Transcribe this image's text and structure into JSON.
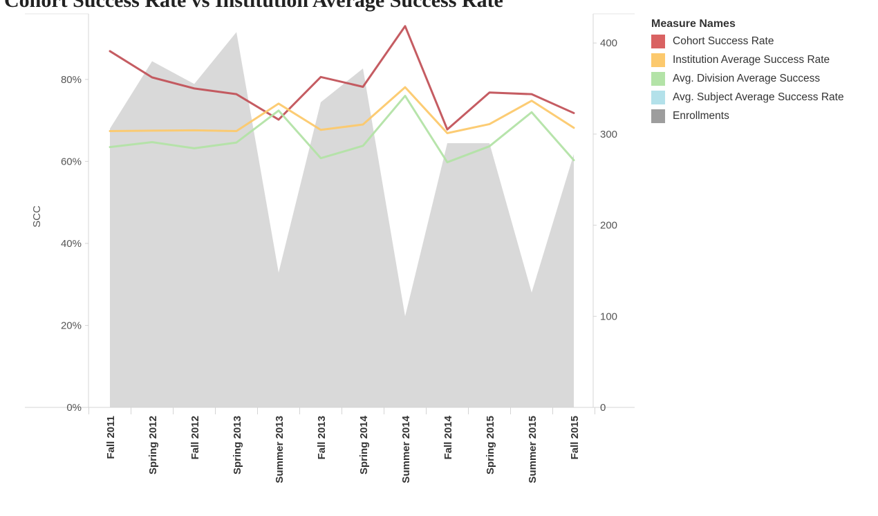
{
  "header": {
    "text": "Cohort Success Rate vs Institution Average Success Rate"
  },
  "legend": {
    "title": "Measure Names",
    "items": [
      {
        "label": "Cohort Success Rate",
        "color": "#d96262"
      },
      {
        "label": "Institution Average Success Rate",
        "color": "#fcc96d"
      },
      {
        "label": "Avg. Division Average Success",
        "color": "#b3e3a7"
      },
      {
        "label": "Avg. Subject Average Success Rate",
        "color": "#b3e1ea"
      },
      {
        "label": "Enrollments",
        "color": "#9d9d9d"
      }
    ]
  },
  "chart_data": {
    "type": "line",
    "categories": [
      "Fall 2011",
      "Spring 2012",
      "Fall 2012",
      "Spring 2013",
      "Summer 2013",
      "Fall 2013",
      "Spring 2014",
      "Summer 2014",
      "Fall 2014",
      "Spring 2015",
      "Summer 2015",
      "Fall 2015"
    ],
    "ylabel": "SCC",
    "xlabel": "",
    "y_left": {
      "range": [
        0,
        0.96
      ],
      "ticks": [
        0,
        0.2,
        0.4,
        0.6,
        0.8
      ],
      "tick_labels": [
        "0%",
        "20%",
        "40%",
        "60%",
        "80%"
      ]
    },
    "y_right": {
      "range": [
        0,
        432
      ],
      "ticks": [
        0,
        100,
        200,
        300,
        400
      ],
      "tick_labels": [
        "0",
        "100",
        "200",
        "300",
        "400"
      ]
    },
    "grid": false,
    "legend_position": "right",
    "series": [
      {
        "name": "Cohort Success Rate",
        "axis": "left",
        "color": "#c2535a",
        "values": [
          0.869,
          0.805,
          0.778,
          0.764,
          0.702,
          0.806,
          0.782,
          0.93,
          0.678,
          0.768,
          0.764,
          0.718
        ]
      },
      {
        "name": "Institution Average Success Rate",
        "axis": "left",
        "color": "#fcc96d",
        "values": [
          0.674,
          0.675,
          0.676,
          0.674,
          0.741,
          0.677,
          0.69,
          0.781,
          0.669,
          0.691,
          0.748,
          0.682
        ]
      },
      {
        "name": "Avg. Division Average Success",
        "axis": "left",
        "color": "#b3e3a7",
        "values": [
          0.635,
          0.647,
          0.632,
          0.646,
          0.724,
          0.608,
          0.638,
          0.76,
          0.598,
          0.637,
          0.72,
          0.603
        ]
      },
      {
        "name": "Enrollments",
        "axis": "right",
        "type": "area",
        "color": "#d9d9d9",
        "values": [
          306,
          380,
          355,
          412,
          148,
          335,
          372,
          100,
          290,
          290,
          126,
          278
        ]
      }
    ]
  }
}
